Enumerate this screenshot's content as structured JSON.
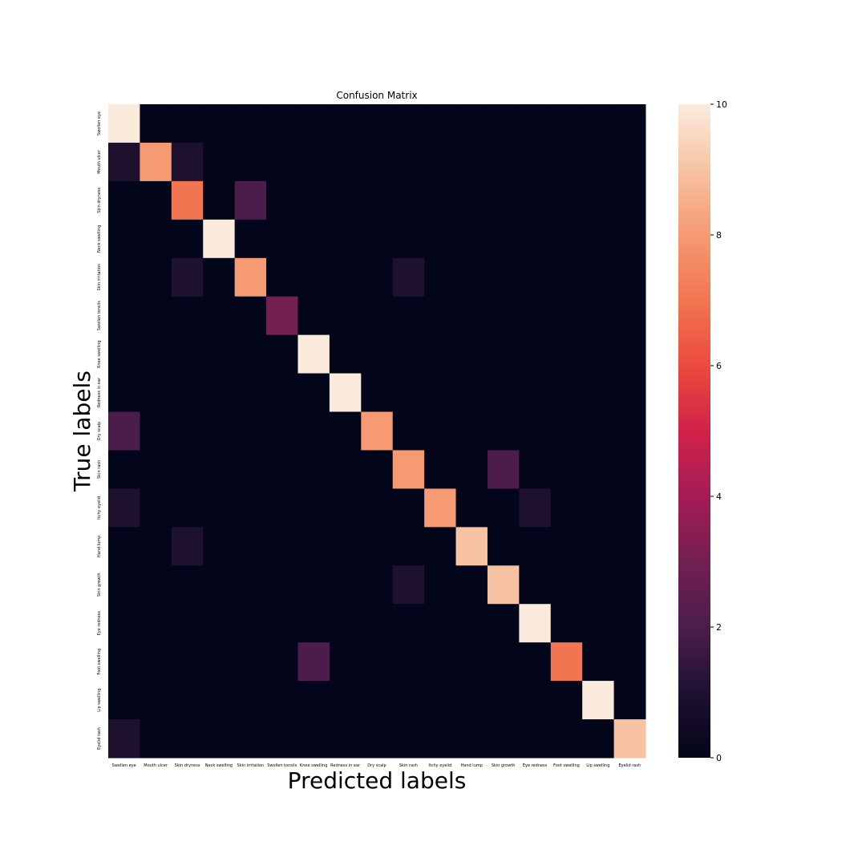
{
  "chart_data": {
    "type": "heatmap",
    "title": "Confusion Matrix",
    "xlabel": "Predicted labels",
    "ylabel": "True labels",
    "labels": [
      "Swollen eye",
      "Mouth ulcer",
      "Skin dryness",
      "Neck swelling",
      "Skin irritation",
      "Swollen tonsils",
      "Knee swelling",
      "Redness in ear",
      "Dry scalp",
      "Skin rash",
      "Itchy eyelid",
      "Hand lump",
      "Skin growth",
      "Eye redness",
      "Foot swelling",
      "Lip swelling",
      "Eyelid rash"
    ],
    "matrix": [
      [
        10,
        0,
        0,
        0,
        0,
        0,
        0,
        0,
        0,
        0,
        0,
        0,
        0,
        0,
        0,
        0,
        0
      ],
      [
        1,
        8,
        1,
        0,
        0,
        0,
        0,
        0,
        0,
        0,
        0,
        0,
        0,
        0,
        0,
        0,
        0
      ],
      [
        0,
        0,
        7,
        0,
        2,
        0,
        0,
        0,
        0,
        0,
        0,
        0,
        0,
        0,
        0,
        0,
        0
      ],
      [
        0,
        0,
        0,
        10,
        0,
        0,
        0,
        0,
        0,
        0,
        0,
        0,
        0,
        0,
        0,
        0,
        0
      ],
      [
        0,
        0,
        1,
        0,
        8,
        0,
        0,
        0,
        0,
        1,
        0,
        0,
        0,
        0,
        0,
        0,
        0
      ],
      [
        0,
        0,
        0,
        0,
        0,
        3,
        0,
        0,
        0,
        0,
        0,
        0,
        0,
        0,
        0,
        0,
        0
      ],
      [
        0,
        0,
        0,
        0,
        0,
        0,
        10,
        0,
        0,
        0,
        0,
        0,
        0,
        0,
        0,
        0,
        0
      ],
      [
        0,
        0,
        0,
        0,
        0,
        0,
        0,
        10,
        0,
        0,
        0,
        0,
        0,
        0,
        0,
        0,
        0
      ],
      [
        2,
        0,
        0,
        0,
        0,
        0,
        0,
        0,
        8,
        0,
        0,
        0,
        0,
        0,
        0,
        0,
        0
      ],
      [
        0,
        0,
        0,
        0,
        0,
        0,
        0,
        0,
        0,
        8,
        0,
        0,
        2,
        0,
        0,
        0,
        0
      ],
      [
        1,
        0,
        0,
        0,
        0,
        0,
        0,
        0,
        0,
        0,
        8,
        0,
        0,
        1,
        0,
        0,
        0
      ],
      [
        0,
        0,
        1,
        0,
        0,
        0,
        0,
        0,
        0,
        0,
        0,
        9,
        0,
        0,
        0,
        0,
        0
      ],
      [
        0,
        0,
        0,
        0,
        0,
        0,
        0,
        0,
        0,
        1,
        0,
        0,
        9,
        0,
        0,
        0,
        0
      ],
      [
        0,
        0,
        0,
        0,
        0,
        0,
        0,
        0,
        0,
        0,
        0,
        0,
        0,
        10,
        0,
        0,
        0
      ],
      [
        0,
        0,
        0,
        0,
        0,
        0,
        2,
        0,
        0,
        0,
        0,
        0,
        0,
        0,
        7,
        0,
        0
      ],
      [
        0,
        0,
        0,
        0,
        0,
        0,
        0,
        0,
        0,
        0,
        0,
        0,
        0,
        0,
        0,
        10,
        0
      ],
      [
        1,
        0,
        0,
        0,
        0,
        0,
        0,
        0,
        0,
        0,
        0,
        0,
        0,
        0,
        0,
        0,
        9
      ]
    ],
    "colorbar": {
      "min": 0,
      "max": 10,
      "ticks": [
        0,
        2,
        4,
        6,
        8,
        10
      ],
      "colormap": "rocket"
    },
    "grid": false
  }
}
